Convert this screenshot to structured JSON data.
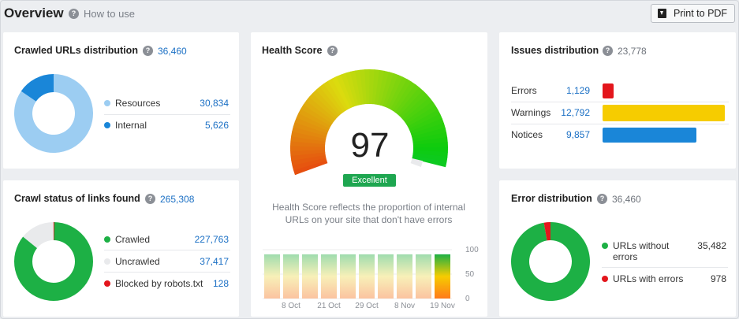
{
  "header": {
    "title": "Overview",
    "how_to_use": "How to use",
    "print_label": "Print to PDF",
    "help_icon": "question-circle-icon",
    "print_icon": "download-icon"
  },
  "crawled_urls": {
    "title": "Crawled URLs distribution",
    "total": "36,460",
    "items": [
      {
        "label": "Resources",
        "value": "30,834",
        "color": "#9ccdf2"
      },
      {
        "label": "Internal",
        "value": "5,626",
        "color": "#1a86d8"
      }
    ],
    "chart_data": {
      "type": "pie",
      "categories": [
        "Resources",
        "Internal"
      ],
      "values": [
        30834,
        5626
      ]
    }
  },
  "crawl_status": {
    "title": "Crawl status of links found",
    "total": "265,308",
    "items": [
      {
        "label": "Crawled",
        "value": "227,763",
        "color": "#1db045"
      },
      {
        "label": "Uncrawled",
        "value": "37,417",
        "color": "#e9eaec"
      },
      {
        "label": "Blocked by robots.txt",
        "value": "128",
        "color": "#e3161c"
      }
    ],
    "chart_data": {
      "type": "pie",
      "categories": [
        "Crawled",
        "Uncrawled",
        "Blocked by robots.txt"
      ],
      "values": [
        227763,
        37417,
        128
      ]
    }
  },
  "health": {
    "title": "Health Score",
    "score": "97",
    "badge": "Excellent",
    "description_line1": "Health Score reflects the proportion of internal",
    "description_line2": "URLs on your site that don't have errors",
    "score_value": 97,
    "chart_data": {
      "type": "bar",
      "categories": [
        "",
        "8 Oct",
        "",
        "21 Oct",
        "",
        "29 Oct",
        "",
        "8 Nov",
        "",
        "19 Nov"
      ],
      "values": [
        97,
        97,
        97,
        97,
        97,
        97,
        97,
        97,
        97,
        97
      ],
      "highlight_index": 9,
      "ylim": [
        0,
        100
      ],
      "yticks": [
        "100",
        "50",
        "0"
      ],
      "xticks": [
        "8 Oct",
        "21 Oct",
        "29 Oct",
        "8 Nov",
        "19 Nov"
      ]
    }
  },
  "issues": {
    "title": "Issues distribution",
    "total": "23,778",
    "items": [
      {
        "label": "Errors",
        "value": "1,129",
        "color": "#e3161c",
        "num": 1129
      },
      {
        "label": "Warnings",
        "value": "12,792",
        "color": "#f6cc00",
        "num": 12792
      },
      {
        "label": "Notices",
        "value": "9,857",
        "color": "#1a86d8",
        "num": 9857
      }
    ],
    "chart_data": {
      "type": "bar",
      "categories": [
        "Errors",
        "Warnings",
        "Notices"
      ],
      "values": [
        1129,
        12792,
        9857
      ]
    }
  },
  "errors": {
    "title": "Error distribution",
    "total": "36,460",
    "items": [
      {
        "label_line1": "URLs without",
        "label_line2": "errors",
        "value": "35,482",
        "color": "#1db045"
      },
      {
        "label_line1": "URLs with errors",
        "label_line2": "",
        "value": "978",
        "color": "#e3161c"
      }
    ],
    "chart_data": {
      "type": "pie",
      "categories": [
        "URLs without errors",
        "URLs with errors"
      ],
      "values": [
        35482,
        978
      ]
    }
  }
}
